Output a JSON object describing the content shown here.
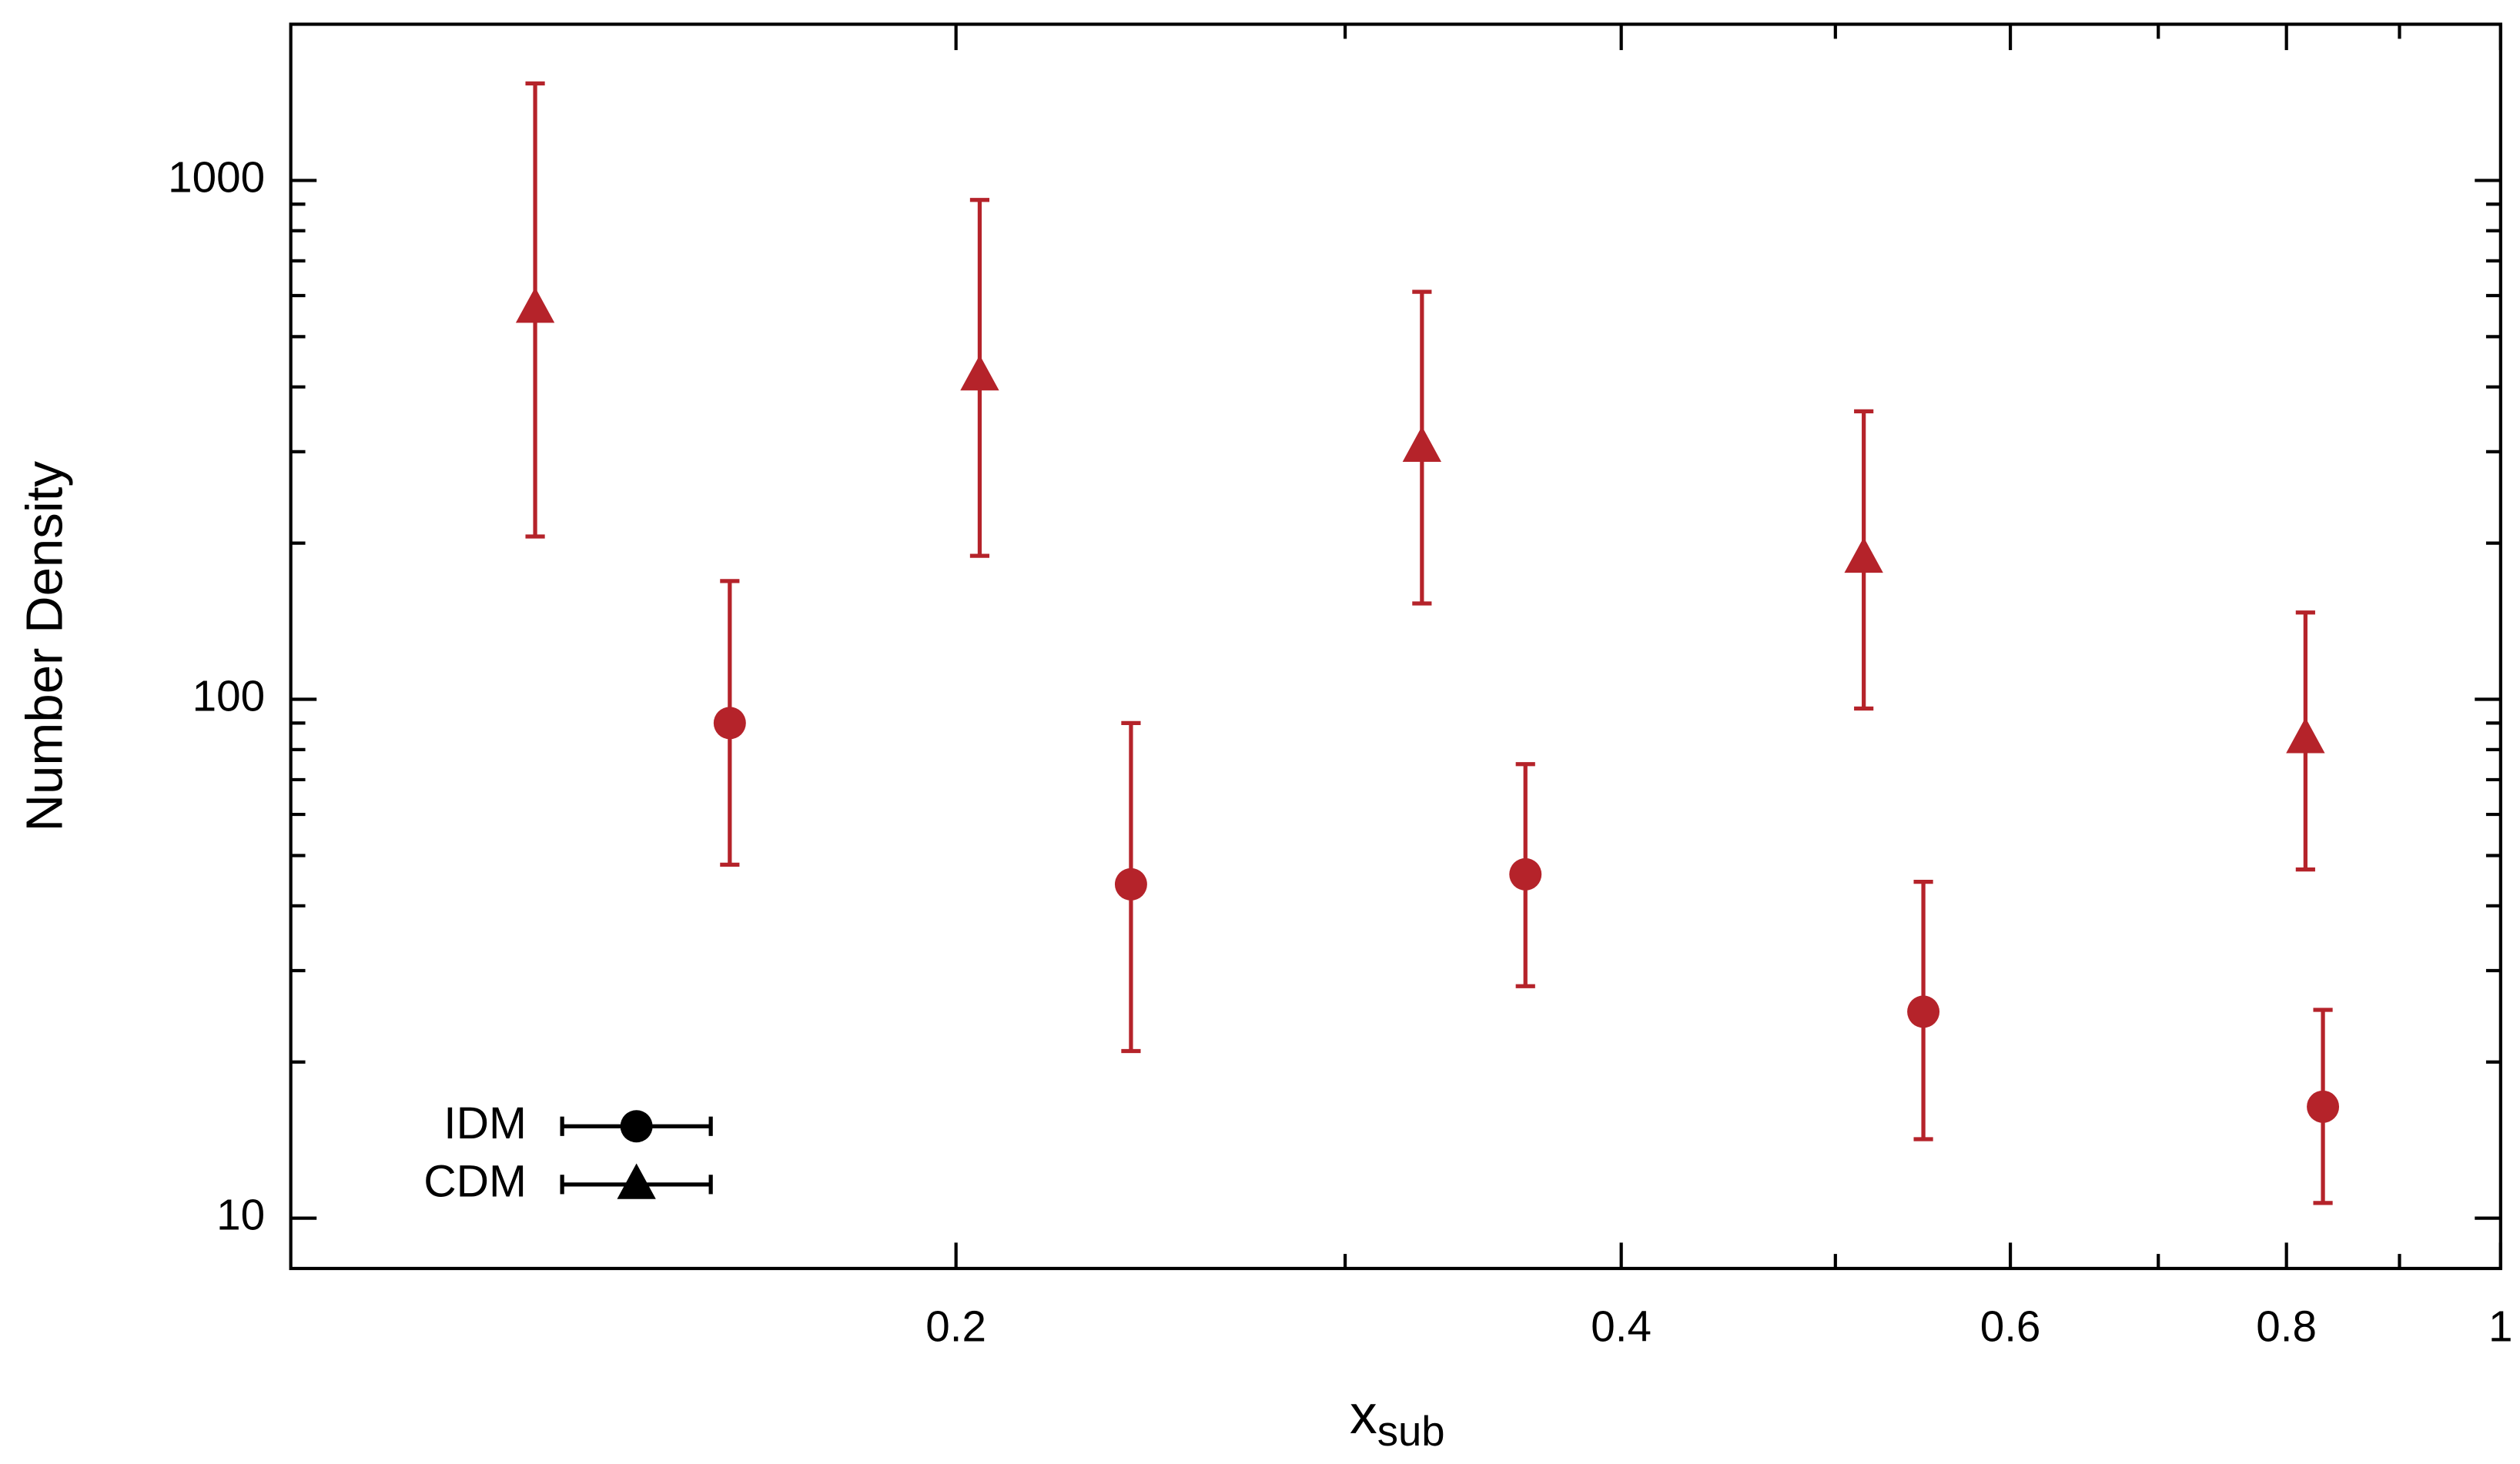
{
  "chart_data": {
    "type": "scatter",
    "xlabel": {
      "main": "x",
      "sub": "sub"
    },
    "ylabel": "Number Density",
    "xlog": true,
    "ylog": true,
    "xlim": [
      0.1,
      1
    ],
    "ylim": [
      8,
      2000
    ],
    "xticks": [
      0.2,
      0.4,
      0.6,
      0.8,
      1
    ],
    "xminorticks": [
      0.3,
      0.5,
      0.7,
      0.9
    ],
    "yticks": [
      10,
      100,
      1000
    ],
    "yminorticks": [
      20,
      30,
      40,
      50,
      60,
      70,
      80,
      90,
      200,
      300,
      400,
      500,
      600,
      700,
      800,
      900
    ],
    "legend_position": "lower left",
    "legend_color": "#000000",
    "series": [
      {
        "name": "IDM",
        "marker": "circle",
        "color": "#b5232a",
        "x": [
          0.158,
          0.24,
          0.362,
          0.548,
          0.831
        ],
        "values": [
          90,
          44,
          46,
          25,
          16.4
        ],
        "ylow": [
          48,
          21,
          28,
          14.2,
          10.7
        ],
        "yhigh": [
          169,
          90,
          75,
          44.5,
          25.2
        ]
      },
      {
        "name": "CDM",
        "marker": "triangle",
        "color": "#b5232a",
        "x": [
          0.129,
          0.205,
          0.325,
          0.515,
          0.816
        ],
        "values": [
          567,
          420,
          306,
          187,
          84
        ],
        "ylow": [
          206,
          189,
          153,
          96,
          47
        ],
        "yhigh": [
          1538,
          917,
          610,
          359,
          147
        ]
      }
    ]
  }
}
